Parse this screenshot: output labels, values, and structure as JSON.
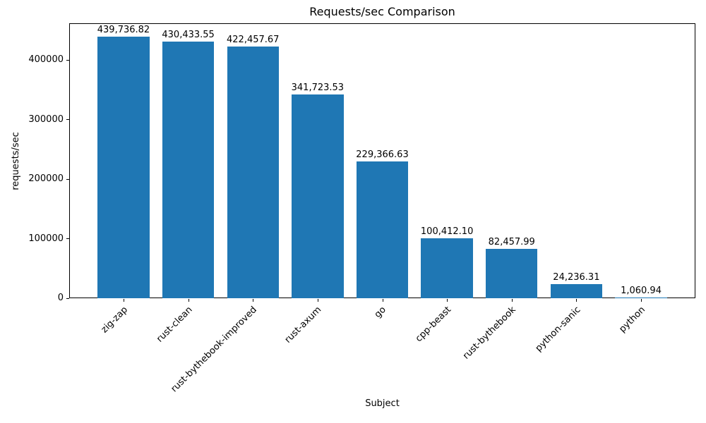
{
  "chart_data": {
    "type": "bar",
    "title": "Requests/sec Comparison",
    "xlabel": "Subject",
    "ylabel": "requests/sec",
    "categories": [
      "zig-zap",
      "rust-clean",
      "rust-bythebook-improved",
      "rust-axum",
      "go",
      "cpp-beast",
      "rust-bythebook",
      "python-sanic",
      "python"
    ],
    "values": [
      439736.82,
      430433.55,
      422457.67,
      341723.53,
      229366.63,
      100412.1,
      82457.99,
      24236.31,
      1060.94
    ],
    "bar_labels": [
      "439,736.82",
      "430,433.55",
      "422,457.67",
      "341,723.53",
      "229,366.63",
      "100,412.10",
      "82,457.99",
      "24,236.31",
      "1,060.94"
    ],
    "yticks": [
      0,
      100000,
      200000,
      300000,
      400000
    ],
    "ytick_labels": [
      "0",
      "100000",
      "200000",
      "300000",
      "400000"
    ],
    "ylim": [
      0,
      461724
    ],
    "bar_color": "#1f77b4",
    "axis_color": "#000000",
    "grid": false,
    "legend": "none",
    "bar_width_fraction": 0.8
  }
}
